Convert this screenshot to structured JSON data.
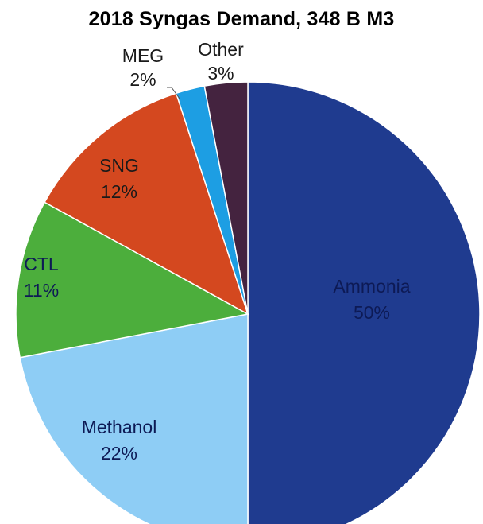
{
  "chart_data": {
    "type": "pie",
    "title": "2018 Syngas Demand, 348 B M3",
    "unit": "%",
    "slices": [
      {
        "label": "Ammonia",
        "value": 50,
        "value_label": "50%",
        "color": "#1f3b8f",
        "text_color": "#0d1a55"
      },
      {
        "label": "Methanol",
        "value": 22,
        "value_label": "22%",
        "color": "#8ecdf5",
        "text_color": "#0d1a55"
      },
      {
        "label": "CTL",
        "value": 11,
        "value_label": "11%",
        "color": "#4cae3c",
        "text_color": "#0d1a55"
      },
      {
        "label": "SNG",
        "value": 12,
        "value_label": "12%",
        "color": "#d4481f",
        "text_color": "#1a1a1a"
      },
      {
        "label": "MEG",
        "value": 2,
        "value_label": "2%",
        "color": "#1d9ee3",
        "text_color": "#1a1a1a"
      },
      {
        "label": "Other",
        "value": 3,
        "value_label": "3%",
        "color": "#44233f",
        "text_color": "#1a1a1a"
      }
    ],
    "start_angle_deg": 0,
    "direction": "clockwise",
    "legend": "none"
  }
}
